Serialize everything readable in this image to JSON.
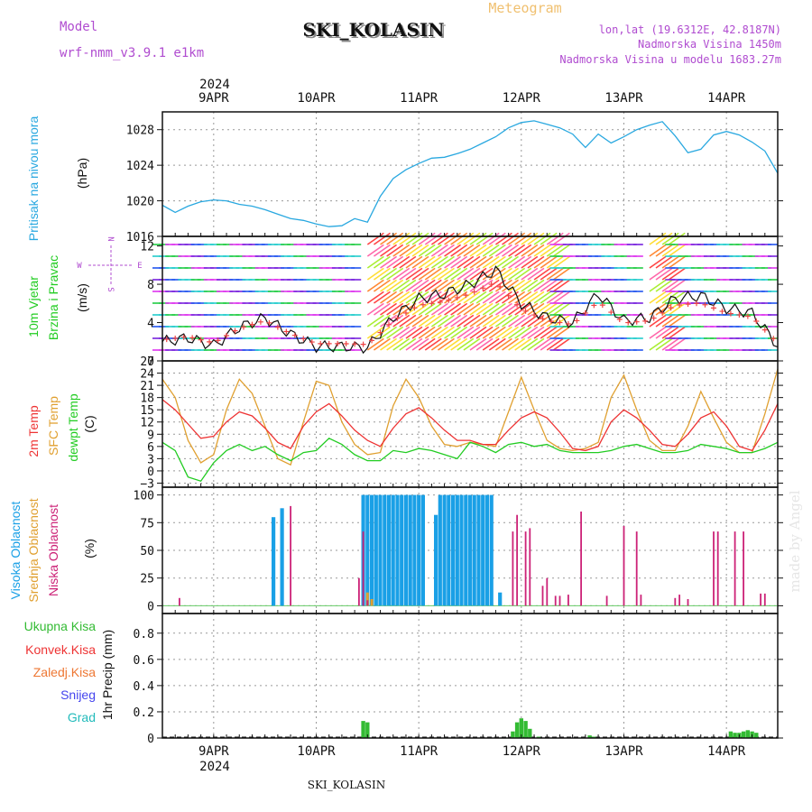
{
  "header": {
    "model_label": "Model",
    "model_name": "wrf-nmm_v3.9.1 e1km",
    "station": "SKI_KOLASIN",
    "meteogram_label": "Meteogram",
    "lonlat": "lon,lat (19.6312E, 42.8187N)",
    "altitude": "Nadmorska Visina 1450m",
    "model_altitude": "Nadmorska Visina u modelu 1683.27m",
    "watermark": "made by Angel",
    "footer_station": "SKI_KOLASIN"
  },
  "colors": {
    "pressure": "#29a8e0",
    "wind_label": "#22cc22",
    "temp": "#ee3333",
    "sfc_temp": "#e0a030",
    "dewpoint": "#22cc22",
    "high_cloud": "#1aa0e6",
    "mid_cloud": "#e0a030",
    "low_cloud": "#cc2277",
    "total_precip": "#33bb33",
    "conv_precip": "#ee3333",
    "frozen_precip": "#ee7733",
    "snow": "#4444ee",
    "graupel": "#22bbbb",
    "header_purple": "#b04cd0",
    "header_orange": "#f0c070"
  },
  "time_axis": {
    "year": "2024",
    "days": [
      "9APR",
      "10APR",
      "11APR",
      "12APR",
      "13APR",
      "14APR"
    ]
  },
  "panels": {
    "pressure": {
      "label": "Pritisak na nivou mora",
      "unit": "(hPa)",
      "ticks": [
        "1016",
        "1020",
        "1024",
        "1028"
      ]
    },
    "wind": {
      "label1": "10m Vjetar",
      "label2": "Brzina i Pravac",
      "unit": "(m/s)",
      "ticks": [
        "0",
        "4",
        "8",
        "12"
      ],
      "compass": [
        "N",
        "W",
        "E",
        "S"
      ]
    },
    "temperature": {
      "label1": "2m Temp",
      "label2": "SFC Temp",
      "label3": "dewpt Temp",
      "unit": "(C)",
      "ticks": [
        "−3",
        "0",
        "3",
        "6",
        "9",
        "12",
        "15",
        "18",
        "21",
        "24",
        "27"
      ]
    },
    "cloud": {
      "label1": "Visoka Oblacnost",
      "label2": "Srednja Oblacnost",
      "label3": "Niska Oblacnost",
      "unit": "(%)",
      "ticks": [
        "0",
        "25",
        "50",
        "75",
        "100"
      ]
    },
    "precip": {
      "labels": [
        "Ukupna Kisa",
        "Konvek.Kisa",
        "Zaledj.Kisa",
        "Snijeg",
        "Grad"
      ],
      "axis_label": "1hr Precip (mm)",
      "ticks": [
        "0",
        "0.2",
        "0.4",
        "0.6",
        "0.8"
      ]
    }
  },
  "chart_data": [
    {
      "type": "line",
      "title": "Pritisak na nivou mora",
      "ylabel": "(hPa)",
      "x_unit": "hours from 2024-04-08 12:00 UTC",
      "ylim": [
        1016,
        1030
      ],
      "series": [
        {
          "name": "Pritisak na nivou mora",
          "x": [
            0,
            3,
            6,
            9,
            12,
            15,
            18,
            21,
            24,
            27,
            30,
            33,
            36,
            39,
            42,
            45,
            48,
            51,
            54,
            57,
            60,
            63,
            66,
            69,
            72,
            75,
            78,
            81,
            84,
            87,
            90,
            93,
            96,
            99,
            102,
            105,
            108,
            111,
            114,
            117,
            120,
            123,
            126,
            129,
            132,
            135,
            138,
            141,
            144
          ],
          "y": [
            1019.5,
            1018.7,
            1019.4,
            1019.9,
            1020.1,
            1020.0,
            1019.6,
            1019.4,
            1019.0,
            1018.5,
            1018.0,
            1017.8,
            1017.4,
            1017.1,
            1017.2,
            1018.0,
            1017.6,
            1020.5,
            1022.5,
            1023.5,
            1024.2,
            1024.8,
            1024.9,
            1025.3,
            1025.8,
            1026.5,
            1027.2,
            1028.2,
            1028.8,
            1029.0,
            1028.6,
            1028.2,
            1027.5,
            1026.0,
            1027.5,
            1026.5,
            1027.2,
            1028.0,
            1028.5,
            1028.9,
            1027.3,
            1025.4,
            1025.8,
            1027.4,
            1027.8,
            1027.4,
            1026.6,
            1025.6,
            1023.1
          ]
        }
      ]
    },
    {
      "type": "line",
      "title": "10m Vjetar Brzina i Pravac",
      "ylabel": "(m/s)",
      "x_unit": "hours from 2024-04-08 12:00 UTC",
      "ylim": [
        0,
        13
      ],
      "series": [
        {
          "name": "10m Vjetar",
          "x": [
            0,
            6,
            12,
            18,
            24,
            30,
            36,
            42,
            48,
            54,
            60,
            66,
            72,
            78,
            84,
            90,
            96,
            102,
            108,
            114,
            120,
            126,
            132,
            138,
            144
          ],
          "y": [
            2.0,
            2.4,
            1.6,
            3.5,
            4.5,
            2.8,
            1.5,
            1.5,
            1.4,
            4.5,
            6.5,
            7.0,
            8.0,
            9.5,
            6.0,
            4.5,
            4.0,
            7.0,
            4.2,
            4.5,
            6.5,
            6.8,
            5.5,
            5.0,
            1.6
          ]
        }
      ]
    },
    {
      "type": "line",
      "title": "2m Temp / SFC Temp / dewpt Temp",
      "ylabel": "(C)",
      "x_unit": "hours from 2024-04-08 12:00 UTC",
      "ylim": [
        -4,
        27
      ],
      "series": [
        {
          "name": "2m Temp",
          "x": [
            0,
            3,
            6,
            9,
            12,
            15,
            18,
            21,
            24,
            27,
            30,
            33,
            36,
            39,
            42,
            45,
            48,
            51,
            54,
            57,
            60,
            63,
            66,
            69,
            72,
            75,
            78,
            81,
            84,
            87,
            90,
            93,
            96,
            99,
            102,
            105,
            108,
            111,
            114,
            117,
            120,
            123,
            126,
            129,
            132,
            135,
            138,
            141,
            144
          ],
          "y": [
            17.5,
            15.0,
            11.5,
            8.0,
            8.5,
            12.0,
            14.5,
            13.5,
            10.5,
            7.0,
            5.5,
            11.0,
            14.5,
            16.5,
            13.5,
            10.0,
            7.5,
            6.0,
            10.5,
            14.0,
            15.5,
            13.0,
            10.0,
            7.5,
            7.5,
            6.5,
            6.5,
            10.0,
            13.0,
            14.5,
            13.0,
            9.5,
            5.5,
            5.0,
            6.0,
            12.0,
            15.0,
            13.0,
            10.0,
            6.5,
            6.0,
            9.0,
            13.0,
            14.5,
            11.0,
            6.0,
            5.0,
            10.0,
            16.5
          ]
        },
        {
          "name": "SFC Temp",
          "x": [
            0,
            3,
            6,
            9,
            12,
            15,
            18,
            21,
            24,
            27,
            30,
            33,
            36,
            39,
            42,
            45,
            48,
            51,
            54,
            57,
            60,
            63,
            66,
            69,
            72,
            75,
            78,
            81,
            84,
            87,
            90,
            93,
            96,
            99,
            102,
            105,
            108,
            111,
            114,
            117,
            120,
            123,
            126,
            129,
            132,
            135,
            138,
            141,
            144
          ],
          "y": [
            22.5,
            18.0,
            7.5,
            2.0,
            4.0,
            15.0,
            22.5,
            19.0,
            11.0,
            3.0,
            1.5,
            12.0,
            22.0,
            21.0,
            12.0,
            6.5,
            4.0,
            4.5,
            16.0,
            22.5,
            18.0,
            11.0,
            6.5,
            6.0,
            7.0,
            6.5,
            6.0,
            14.5,
            23.0,
            15.0,
            7.5,
            5.5,
            5.0,
            5.5,
            7.0,
            18.0,
            23.5,
            15.0,
            7.5,
            5.0,
            5.0,
            11.0,
            19.5,
            13.0,
            7.0,
            4.5,
            4.5,
            14.0,
            25.0
          ]
        },
        {
          "name": "dewpt Temp",
          "x": [
            0,
            3,
            6,
            9,
            12,
            15,
            18,
            21,
            24,
            27,
            30,
            33,
            36,
            39,
            42,
            45,
            48,
            51,
            54,
            57,
            60,
            63,
            66,
            69,
            72,
            75,
            78,
            81,
            84,
            87,
            90,
            93,
            96,
            99,
            102,
            105,
            108,
            111,
            114,
            117,
            120,
            123,
            126,
            129,
            132,
            135,
            138,
            141,
            144
          ],
          "y": [
            7.0,
            5.0,
            -1.5,
            -2.5,
            2.0,
            5.0,
            6.5,
            5.0,
            6.0,
            4.0,
            2.5,
            4.5,
            5.0,
            8.0,
            6.5,
            4.0,
            2.5,
            2.5,
            5.0,
            4.5,
            5.5,
            5.0,
            4.0,
            3.0,
            7.0,
            6.0,
            4.5,
            6.5,
            7.0,
            6.0,
            6.5,
            5.0,
            4.5,
            4.5,
            4.5,
            5.0,
            6.0,
            6.5,
            5.5,
            4.5,
            4.5,
            5.0,
            6.5,
            6.0,
            5.5,
            4.5,
            4.5,
            5.5,
            7.0
          ]
        }
      ]
    },
    {
      "type": "bar",
      "title": "Visoka / Srednja / Niska Oblacnost",
      "ylabel": "(%)",
      "x_unit": "hours from 2024-04-08 12:00 UTC",
      "ylim": [
        0,
        100
      ],
      "series": [
        {
          "name": "Visoka Oblacnost",
          "x": [
            26,
            28,
            47,
            48,
            49,
            50,
            51,
            52,
            53,
            54,
            55,
            56,
            57,
            58,
            59,
            60,
            61,
            64,
            65,
            66,
            67,
            68,
            69,
            70,
            71,
            72,
            73,
            74,
            75,
            76,
            77,
            79
          ],
          "values": [
            80,
            88,
            100,
            100,
            100,
            100,
            100,
            100,
            100,
            100,
            100,
            100,
            100,
            100,
            100,
            100,
            100,
            82,
            100,
            100,
            100,
            100,
            100,
            100,
            100,
            100,
            100,
            100,
            100,
            100,
            100,
            12
          ]
        },
        {
          "name": "Srednja Oblacnost",
          "x": [
            48,
            49
          ],
          "values": [
            12,
            6
          ]
        },
        {
          "name": "Niska Oblacnost",
          "x": [
            4,
            30,
            46,
            47,
            48,
            82,
            83,
            85,
            86,
            89,
            90,
            92,
            93,
            95,
            98,
            104,
            108,
            111,
            112,
            120,
            121,
            123,
            129,
            130,
            134,
            136,
            140,
            141
          ],
          "values": [
            7,
            90,
            25,
            67,
            5,
            67,
            82,
            67,
            70,
            18,
            25,
            9,
            9,
            10,
            85,
            9,
            72,
            67,
            10,
            7,
            10,
            6,
            67,
            67,
            67,
            67,
            11,
            11
          ]
        }
      ]
    },
    {
      "type": "bar",
      "title": "1hr Precip",
      "ylabel": "1hr Precip (mm)",
      "x_unit": "hours from 2024-04-08 12:00 UTC",
      "ylim": [
        0,
        0.95
      ],
      "series": [
        {
          "name": "Ukupna Kisa",
          "x": [
            47,
            48,
            82,
            83,
            84,
            85,
            86,
            88,
            100,
            101,
            133,
            134,
            135,
            136,
            137,
            138,
            139
          ],
          "values": [
            0.13,
            0.12,
            0.05,
            0.12,
            0.15,
            0.13,
            0.07,
            0.01,
            0.02,
            0.01,
            0.05,
            0.04,
            0.04,
            0.05,
            0.06,
            0.05,
            0.04
          ]
        },
        {
          "name": "Konvek.Kisa",
          "x": [],
          "values": []
        },
        {
          "name": "Zaledj.Kisa",
          "x": [],
          "values": []
        },
        {
          "name": "Snijeg",
          "x": [],
          "values": []
        },
        {
          "name": "Grad",
          "x": [],
          "values": []
        }
      ]
    }
  ]
}
